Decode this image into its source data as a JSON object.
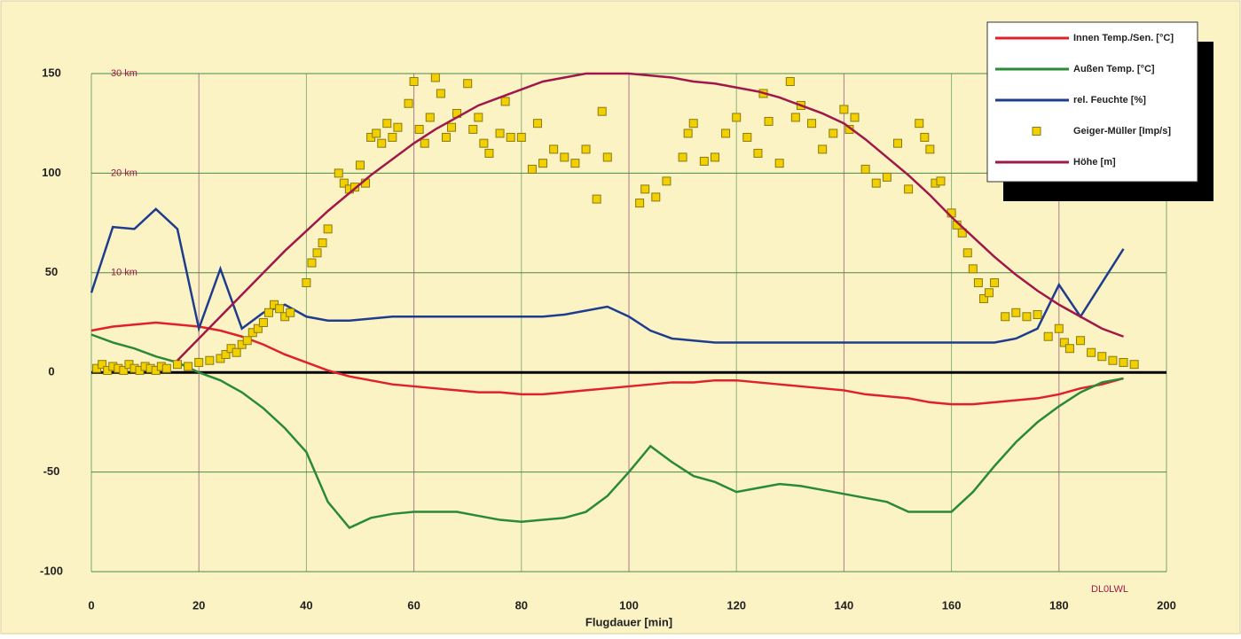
{
  "chart_data": {
    "type": "line",
    "xlabel": "Flugdauer [min]",
    "xlim": [
      0,
      200
    ],
    "xticks": [
      0,
      20,
      40,
      60,
      80,
      100,
      120,
      140,
      160,
      180,
      200
    ],
    "ylim": [
      -100,
      150
    ],
    "yticks": [
      -100,
      -50,
      0,
      50,
      100,
      150
    ],
    "grid": true,
    "legend": "upper right",
    "annotations": [
      "30 km",
      "20 km",
      "10 km",
      "DL0LWL"
    ],
    "x": [
      0,
      4,
      8,
      12,
      16,
      20,
      24,
      28,
      32,
      36,
      40,
      44,
      48,
      52,
      56,
      60,
      64,
      68,
      72,
      76,
      80,
      84,
      88,
      92,
      96,
      100,
      104,
      108,
      112,
      116,
      120,
      124,
      128,
      132,
      136,
      140,
      144,
      148,
      152,
      156,
      160,
      164,
      168,
      172,
      176,
      180,
      184,
      188,
      192
    ],
    "series": [
      {
        "name": "Innen Temp./Sen. [°C]",
        "color": "#e0202a",
        "values": [
          21,
          23,
          24,
          25,
          24,
          23,
          21,
          18,
          14,
          9,
          5,
          1,
          -2,
          -4,
          -6,
          -7,
          -8,
          -9,
          -10,
          -10,
          -11,
          -11,
          -10,
          -9,
          -8,
          -7,
          -6,
          -5,
          -5,
          -4,
          -4,
          -5,
          -6,
          -7,
          -8,
          -9,
          -11,
          -12,
          -13,
          -15,
          -16,
          -16,
          -15,
          -14,
          -13,
          -11,
          -8,
          -6,
          -3
        ]
      },
      {
        "name": "Außen Temp. [°C]",
        "color": "#2a8a3a",
        "values": [
          19,
          15,
          12,
          8,
          5,
          0,
          -4,
          -10,
          -18,
          -28,
          -40,
          -65,
          -78,
          -73,
          -71,
          -70,
          -70,
          -70,
          -72,
          -74,
          -75,
          -74,
          -73,
          -70,
          -62,
          -50,
          -37,
          -45,
          -52,
          -55,
          -60,
          -58,
          -56,
          -57,
          -59,
          -61,
          -63,
          -65,
          -70,
          -70,
          -70,
          -60,
          -47,
          -35,
          -25,
          -17,
          -10,
          -5,
          -3
        ]
      },
      {
        "name": "rel. Feuchte [%]",
        "color": "#1f3d8f",
        "values": [
          40,
          73,
          72,
          82,
          72,
          22,
          52,
          22,
          30,
          34,
          28,
          26,
          26,
          27,
          28,
          28,
          28,
          28,
          28,
          28,
          28,
          28,
          29,
          31,
          33,
          28,
          21,
          17,
          16,
          15,
          15,
          15,
          15,
          15,
          15,
          15,
          15,
          15,
          15,
          15,
          15,
          15,
          15,
          17,
          22,
          44,
          28,
          45,
          62
        ]
      },
      {
        "name": "Geiger-Müller [Imp/s]",
        "color": "#f2d000",
        "type": "scatter",
        "x": [
          1,
          2,
          3,
          4,
          5,
          6,
          7,
          8,
          9,
          10,
          11,
          12,
          13,
          14,
          16,
          18,
          20,
          22,
          24,
          25,
          26,
          27,
          28,
          29,
          30,
          31,
          32,
          33,
          34,
          35,
          36,
          37,
          40,
          41,
          42,
          43,
          44,
          46,
          47,
          48,
          49,
          50,
          51,
          52,
          53,
          54,
          55,
          56,
          57,
          59,
          60,
          61,
          62,
          63,
          64,
          65,
          66,
          67,
          68,
          70,
          71,
          72,
          73,
          74,
          76,
          77,
          78,
          80,
          82,
          83,
          84,
          86,
          88,
          90,
          92,
          94,
          95,
          96,
          102,
          103,
          105,
          107,
          110,
          111,
          112,
          114,
          116,
          118,
          120,
          122,
          124,
          125,
          126,
          128,
          130,
          131,
          132,
          134,
          136,
          138,
          140,
          141,
          142,
          144,
          146,
          148,
          150,
          152,
          154,
          155,
          156,
          157,
          158,
          160,
          161,
          162,
          163,
          164,
          165,
          166,
          167,
          168,
          170,
          172,
          174,
          176,
          178,
          180,
          181,
          182,
          184,
          186,
          188,
          190,
          192,
          194
        ],
        "values": [
          2,
          4,
          1,
          3,
          2,
          1,
          4,
          2,
          1,
          3,
          2,
          1,
          3,
          2,
          4,
          3,
          5,
          6,
          7,
          9,
          12,
          10,
          14,
          16,
          20,
          22,
          25,
          30,
          34,
          32,
          28,
          30,
          45,
          55,
          60,
          65,
          72,
          100,
          95,
          92,
          93,
          104,
          95,
          118,
          120,
          115,
          125,
          118,
          123,
          135,
          146,
          122,
          115,
          128,
          148,
          140,
          118,
          123,
          130,
          145,
          122,
          128,
          115,
          110,
          120,
          136,
          118,
          118,
          102,
          125,
          105,
          112,
          108,
          105,
          112,
          87,
          131,
          108,
          85,
          92,
          88,
          96,
          108,
          120,
          125,
          106,
          108,
          120,
          128,
          118,
          110,
          140,
          126,
          105,
          146,
          128,
          134,
          125,
          112,
          120,
          132,
          122,
          128,
          102,
          95,
          98,
          115,
          92,
          125,
          118,
          112,
          95,
          96,
          80,
          74,
          70,
          60,
          52,
          45,
          37,
          40,
          45,
          28,
          30,
          28,
          29,
          18,
          22,
          15,
          12,
          16,
          10,
          8,
          6,
          5,
          4
        ]
      },
      {
        "name": "Höhe [m]",
        "color": "#a0184a",
        "values": [
          null,
          null,
          null,
          null,
          6,
          17,
          28,
          39,
          50,
          61,
          71,
          81,
          90,
          99,
          107,
          115,
          122,
          128,
          134,
          138,
          142,
          146,
          148,
          150,
          150,
          150,
          149,
          148,
          146,
          145,
          143,
          141,
          138,
          134,
          130,
          125,
          117,
          108,
          99,
          89,
          78,
          68,
          58,
          49,
          41,
          34,
          28,
          22,
          18
        ]
      }
    ]
  }
}
